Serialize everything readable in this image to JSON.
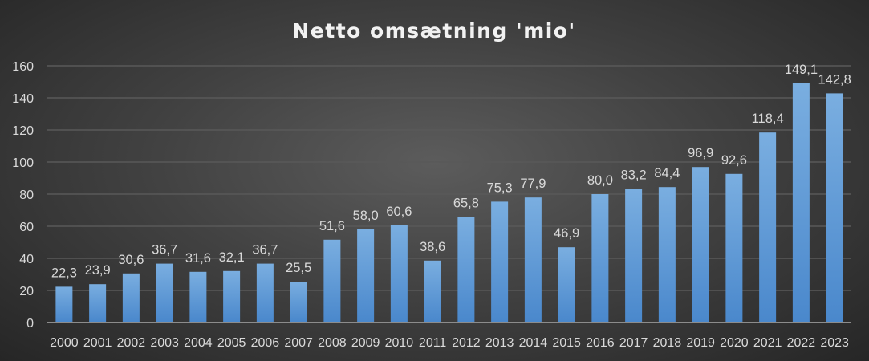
{
  "chart_data": {
    "type": "bar",
    "title": "Netto omsætning 'mio'",
    "xlabel": "",
    "ylabel": "",
    "categories": [
      "2000",
      "2001",
      "2002",
      "2003",
      "2004",
      "2005",
      "2006",
      "2007",
      "2008",
      "2009",
      "2010",
      "2011",
      "2012",
      "2013",
      "2014",
      "2015",
      "2016",
      "2017",
      "2018",
      "2019",
      "2020",
      "2021",
      "2022",
      "2023"
    ],
    "values": [
      22.3,
      23.9,
      30.6,
      36.7,
      31.6,
      32.1,
      36.7,
      25.5,
      51.6,
      58.0,
      60.6,
      38.6,
      65.8,
      75.3,
      77.9,
      46.9,
      80.0,
      83.2,
      84.4,
      96.9,
      92.6,
      118.4,
      149.1,
      142.8
    ],
    "data_labels": [
      "22,3",
      "23,9",
      "30,6",
      "36,7",
      "31,6",
      "32,1",
      "36,7",
      "25,5",
      "51,6",
      "58,0",
      "60,6",
      "38,6",
      "65,8",
      "75,3",
      "77,9",
      "46,9",
      "80,0",
      "83,2",
      "84,4",
      "96,9",
      "92,6",
      "118,4",
      "149,1",
      "142,8"
    ],
    "ylim": [
      0,
      160
    ],
    "yticks": [
      0,
      20,
      40,
      60,
      80,
      100,
      120,
      140,
      160
    ],
    "grid": true,
    "legend": "none",
    "colors": {
      "bar_top": "#7aaee0",
      "bar_bottom": "#4a88cc",
      "grid": "#595959",
      "axis": "#8c8c8c"
    }
  }
}
